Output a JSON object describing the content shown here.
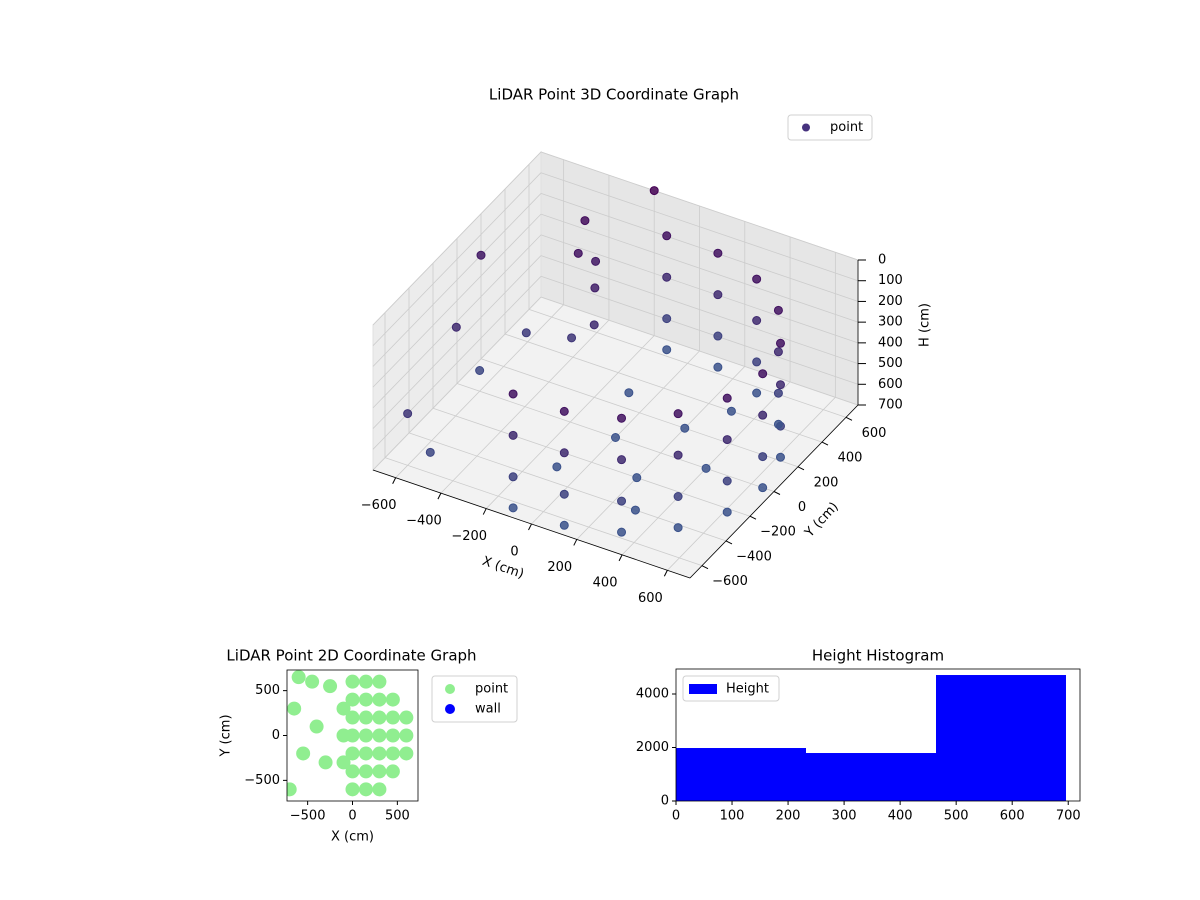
{
  "chart_data": [
    {
      "type": "scatter3d",
      "title": "LiDAR Point 3D Coordinate Graph",
      "xlabel": "X (cm)",
      "ylabel": "Y (cm)",
      "zlabel": "H (cm)",
      "xlim": [
        -700,
        700
      ],
      "ylim": [
        -700,
        700
      ],
      "zlim": [
        0,
        700
      ],
      "z_inverted": true,
      "grid": true,
      "legend": "upper right",
      "xticks": [
        {
          "value": -600,
          "label": "−600"
        },
        {
          "value": -400,
          "label": "−400"
        },
        {
          "value": -200,
          "label": "−200"
        },
        0,
        200,
        400,
        600
      ],
      "yticks": [
        {
          "value": -600,
          "label": "−600"
        },
        {
          "value": -400,
          "label": "−400"
        },
        {
          "value": -200,
          "label": "−200"
        },
        0,
        200,
        400,
        600
      ],
      "zticks": [
        0,
        100,
        200,
        300,
        400,
        500,
        600,
        700
      ],
      "series": [
        {
          "name": "point",
          "color": "#46327e",
          "colormap": [
            "#440154",
            "#3b528b"
          ],
          "clim": [
            0,
            700
          ],
          "x": [
            -113,
            -113,
            -113,
            -113,
            113,
            113,
            113,
            113,
            325,
            325,
            325,
            325,
            498,
            498,
            498,
            498,
            611,
            611,
            611,
            611,
            650,
            650,
            650,
            650,
            611,
            611,
            611,
            611,
            498,
            498,
            498,
            498,
            325,
            325,
            325,
            325,
            113,
            113,
            113,
            113,
            -113,
            -113,
            -113,
            -113,
            0,
            200,
            200,
            400,
            -100,
            300,
            300,
            -100,
            -350,
            -300,
            -250,
            -200,
            -300,
            -700,
            -650,
            -400,
            -600,
            -500,
            -200,
            -500,
            -600
          ],
          "y": [
            -640,
            -640,
            -640,
            -640,
            -640,
            -640,
            -640,
            -640,
            -563,
            -563,
            -563,
            -563,
            -418,
            -418,
            -418,
            -418,
            -222,
            -222,
            -222,
            -222,
            0,
            0,
            0,
            0,
            222,
            222,
            222,
            222,
            418,
            418,
            418,
            418,
            563,
            563,
            563,
            563,
            640,
            640,
            640,
            640,
            640,
            640,
            640,
            640,
            0,
            -200,
            200,
            0,
            -300,
            -400,
            400,
            300,
            350,
            400,
            300,
            200,
            200,
            200,
            -100,
            500,
            -600,
            -600,
            700,
            200,
            0
          ],
          "z": [
            150,
            350,
            550,
            700,
            150,
            350,
            550,
            700,
            150,
            350,
            550,
            700,
            150,
            350,
            550,
            700,
            150,
            350,
            550,
            700,
            150,
            350,
            550,
            700,
            150,
            350,
            550,
            700,
            150,
            350,
            550,
            700,
            150,
            350,
            550,
            700,
            150,
            350,
            550,
            700,
            150,
            350,
            550,
            700,
            700,
            700,
            700,
            700,
            700,
            700,
            700,
            700,
            150,
            200,
            250,
            350,
            450,
            200,
            350,
            100,
            450,
            600,
            0,
            500,
            600
          ]
        }
      ]
    },
    {
      "type": "scatter",
      "title": "LiDAR Point 2D Coordinate Graph",
      "xlabel": "X (cm)",
      "ylabel": "Y (cm)",
      "xlim": [
        -730,
        730
      ],
      "ylim": [
        -730,
        730
      ],
      "legend": "outside right",
      "xticks": [
        {
          "value": -500,
          "label": "−500"
        },
        0,
        500
      ],
      "yticks": [
        {
          "value": -500,
          "label": "−500"
        },
        0,
        500
      ],
      "series": [
        {
          "name": "point",
          "color": "#90ee90",
          "x": [
            0,
            0,
            0,
            0,
            0,
            0,
            0,
            150,
            150,
            150,
            150,
            150,
            150,
            150,
            300,
            300,
            300,
            300,
            300,
            300,
            300,
            450,
            450,
            450,
            450,
            450,
            600,
            600,
            600,
            -100,
            -100,
            -100,
            -650,
            -700,
            -550,
            -400,
            -300,
            -450,
            -250,
            -600
          ],
          "y": [
            -600,
            -400,
            -200,
            0,
            200,
            400,
            600,
            -600,
            -400,
            -200,
            0,
            200,
            400,
            600,
            -600,
            -400,
            -200,
            0,
            200,
            400,
            600,
            -400,
            -200,
            0,
            200,
            400,
            -200,
            0,
            200,
            -300,
            0,
            300,
            300,
            -600,
            -200,
            100,
            -300,
            600,
            550,
            650
          ]
        },
        {
          "name": "wall",
          "color": "#0000ff",
          "x": [],
          "y": []
        }
      ]
    },
    {
      "type": "histogram",
      "title": "Height Histogram",
      "legend": "upper left",
      "xlim": [
        0,
        721
      ],
      "ylim": [
        0,
        4935
      ],
      "xticks": [
        0,
        100,
        200,
        300,
        400,
        500,
        600,
        700
      ],
      "yticks": [
        0,
        2000,
        4000
      ],
      "series": [
        {
          "name": "Height",
          "color": "#0000ff",
          "bins": [
            0,
            232,
            464,
            696
          ],
          "values": [
            1981,
            1794,
            4710
          ]
        }
      ]
    }
  ]
}
